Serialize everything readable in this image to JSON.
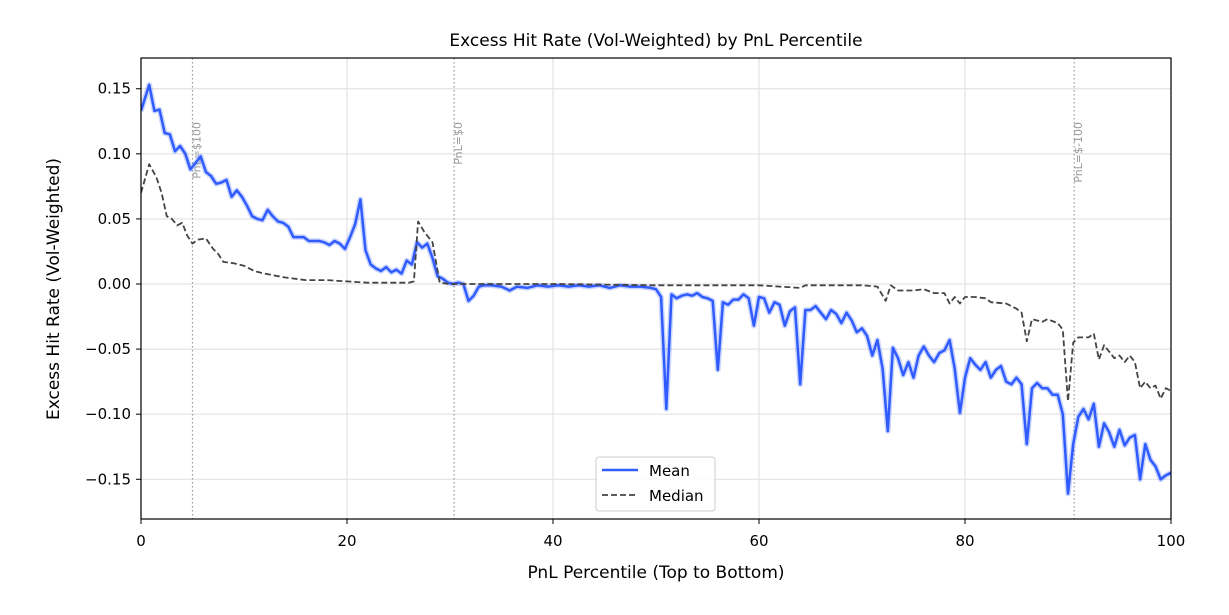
{
  "chart_data": {
    "type": "line",
    "title": "Excess Hit Rate (Vol-Weighted) by PnL Percentile",
    "xlabel": "PnL Percentile (Top to Bottom)",
    "ylabel": "Excess Hit Rate (Vol-Weighted)",
    "xlim": [
      0,
      100
    ],
    "ylim": [
      -0.1805,
      0.1736
    ],
    "xticks": [
      0,
      20,
      40,
      60,
      80,
      100
    ],
    "xtick_labels": [
      "0",
      "20",
      "40",
      "60",
      "80",
      "100"
    ],
    "yticks": [
      0.15,
      0.1,
      0.05,
      0.0,
      -0.05,
      -0.1,
      -0.15
    ],
    "ytick_labels": [
      "0.15",
      "0.10",
      "0.05",
      "0.00",
      "−0.05",
      "−0.10",
      "−0.15"
    ],
    "grid": true,
    "legend_placement": "bottom-center",
    "reference_lines": [
      {
        "x": 5.0,
        "label": "PnL=$100"
      },
      {
        "x": 30.4,
        "label": "PnL=$0"
      },
      {
        "x": 90.6,
        "label": "PnL=$-100"
      }
    ],
    "series": [
      {
        "name": "Mean",
        "color": "#2f5bff",
        "style": "solid",
        "x": [
          0,
          0.8,
          1.3,
          1.8,
          2.3,
          2.8,
          3.3,
          3.8,
          4.3,
          4.8,
          5.3,
          5.8,
          6.3,
          6.8,
          7.3,
          7.8,
          8.3,
          8.8,
          9.3,
          9.8,
          10.3,
          10.8,
          11.3,
          11.8,
          12.3,
          12.8,
          13.3,
          13.8,
          14.3,
          14.8,
          15.3,
          15.8,
          16.3,
          16.8,
          17.3,
          17.8,
          18.3,
          18.8,
          19.3,
          19.8,
          20.3,
          20.8,
          21.3,
          21.8,
          22.3,
          22.8,
          23.3,
          23.8,
          24.3,
          24.8,
          25.3,
          25.8,
          26.3,
          26.8,
          27.3,
          27.8,
          28.3,
          28.8,
          29.3,
          29.8,
          30.3,
          30.8,
          31.3,
          31.8,
          32.3,
          32.8,
          33.3,
          34,
          35,
          35.8,
          36.5,
          37.5,
          38.5,
          39.5,
          40.5,
          41.5,
          42.5,
          43.5,
          44.5,
          45.5,
          46.5,
          47.5,
          48.5,
          49.5,
          50,
          50.5,
          51,
          51.5,
          52,
          52.5,
          53,
          53.5,
          54,
          54.5,
          55,
          55.5,
          56,
          56.5,
          57,
          57.5,
          58,
          58.5,
          59,
          59.5,
          60,
          60.5,
          61,
          61.5,
          62,
          62.5,
          63,
          63.5,
          64,
          64.5,
          65,
          65.5,
          66,
          66.5,
          67,
          67.5,
          68,
          68.5,
          69,
          69.5,
          70,
          70.5,
          71,
          71.5,
          72,
          72.5,
          73,
          73.5,
          74,
          74.5,
          75,
          75.5,
          76,
          76.5,
          77,
          77.5,
          78,
          78.5,
          79,
          79.5,
          80,
          80.5,
          81,
          81.5,
          82,
          82.5,
          83,
          83.5,
          84,
          84.5,
          85,
          85.5,
          86,
          86.5,
          87,
          87.5,
          88,
          88.5,
          89,
          89.5,
          90,
          90.5,
          91,
          91.5,
          92,
          92.5,
          93,
          93.5,
          94,
          94.5,
          95,
          95.5,
          96,
          96.5,
          97,
          97.5,
          98,
          98.5,
          99,
          99.5,
          100
        ],
        "y": [
          0.133,
          0.153,
          0.133,
          0.134,
          0.116,
          0.115,
          0.102,
          0.106,
          0.1,
          0.088,
          0.093,
          0.098,
          0.086,
          0.083,
          0.077,
          0.078,
          0.08,
          0.067,
          0.072,
          0.067,
          0.06,
          0.052,
          0.05,
          0.049,
          0.057,
          0.052,
          0.048,
          0.047,
          0.044,
          0.036,
          0.036,
          0.036,
          0.033,
          0.033,
          0.033,
          0.032,
          0.03,
          0.033,
          0.031,
          0.027,
          0.036,
          0.046,
          0.065,
          0.026,
          0.015,
          0.012,
          0.01,
          0.013,
          0.009,
          0.011,
          0.008,
          0.018,
          0.015,
          0.032,
          0.028,
          0.031,
          0.02,
          0.006,
          0.004,
          0.001,
          0.0,
          0.001,
          0.0,
          -0.013,
          -0.009,
          -0.002,
          -0.001,
          -0.001,
          -0.002,
          -0.005,
          -0.002,
          -0.003,
          -0.001,
          -0.002,
          -0.001,
          -0.002,
          -0.001,
          -0.002,
          -0.001,
          -0.003,
          -0.001,
          -0.002,
          -0.002,
          -0.003,
          -0.004,
          -0.01,
          -0.096,
          -0.008,
          -0.011,
          -0.009,
          -0.008,
          -0.009,
          -0.007,
          -0.01,
          -0.011,
          -0.013,
          -0.066,
          -0.014,
          -0.016,
          -0.012,
          -0.012,
          -0.008,
          -0.011,
          -0.032,
          -0.01,
          -0.011,
          -0.022,
          -0.014,
          -0.016,
          -0.032,
          -0.021,
          -0.018,
          -0.077,
          -0.02,
          -0.02,
          -0.017,
          -0.022,
          -0.027,
          -0.02,
          -0.023,
          -0.03,
          -0.022,
          -0.028,
          -0.037,
          -0.034,
          -0.04,
          -0.055,
          -0.043,
          -0.065,
          -0.113,
          -0.049,
          -0.057,
          -0.07,
          -0.06,
          -0.072,
          -0.055,
          -0.048,
          -0.055,
          -0.06,
          -0.053,
          -0.051,
          -0.043,
          -0.065,
          -0.099,
          -0.072,
          -0.057,
          -0.062,
          -0.066,
          -0.06,
          -0.072,
          -0.066,
          -0.063,
          -0.075,
          -0.077,
          -0.072,
          -0.077,
          -0.123,
          -0.08,
          -0.076,
          -0.08,
          -0.08,
          -0.085,
          -0.085,
          -0.1,
          -0.161,
          -0.123,
          -0.102,
          -0.096,
          -0.104,
          -0.092,
          -0.125,
          -0.107,
          -0.114,
          -0.125,
          -0.112,
          -0.124,
          -0.118,
          -0.116,
          -0.15,
          -0.123,
          -0.135,
          -0.14,
          -0.15,
          -0.147,
          -0.145
        ]
      },
      {
        "name": "Median",
        "color": "#444444",
        "style": "dashed",
        "x": [
          0,
          0.8,
          1.5,
          2,
          2.5,
          3,
          3.5,
          4,
          4.5,
          5,
          5.5,
          6.3,
          7,
          7.5,
          8,
          9,
          10,
          11,
          12,
          14,
          16,
          18,
          20,
          22,
          24,
          26,
          26.5,
          26.9,
          27.5,
          28.3,
          29,
          30,
          40,
          50,
          55,
          60,
          64,
          64.5,
          70,
          71.5,
          72.3,
          72.8,
          73.5,
          75,
          76,
          77,
          78,
          78.5,
          79,
          79.5,
          80,
          81,
          82,
          82.5,
          84,
          85,
          85.5,
          86,
          86.5,
          87,
          87.5,
          88,
          89,
          89.5,
          90,
          90.5,
          91,
          92,
          92.5,
          93,
          93.5,
          94,
          94.5,
          95,
          95.5,
          96,
          96.5,
          97,
          97.5,
          98,
          98.5,
          99,
          99.5,
          100
        ],
        "y": [
          0.07,
          0.092,
          0.082,
          0.07,
          0.052,
          0.05,
          0.045,
          0.047,
          0.037,
          0.031,
          0.034,
          0.035,
          0.027,
          0.023,
          0.017,
          0.016,
          0.014,
          0.01,
          0.008,
          0.005,
          0.003,
          0.003,
          0.002,
          0.001,
          0.001,
          0.001,
          0.002,
          0.048,
          0.04,
          0.032,
          0.001,
          0.0,
          0.0,
          -0.001,
          -0.001,
          -0.001,
          -0.003,
          -0.001,
          -0.001,
          -0.002,
          -0.013,
          -0.001,
          -0.005,
          -0.005,
          -0.004,
          -0.007,
          -0.007,
          -0.015,
          -0.01,
          -0.015,
          -0.01,
          -0.01,
          -0.011,
          -0.014,
          -0.015,
          -0.019,
          -0.022,
          -0.044,
          -0.027,
          -0.028,
          -0.029,
          -0.027,
          -0.03,
          -0.035,
          -0.09,
          -0.045,
          -0.041,
          -0.041,
          -0.038,
          -0.058,
          -0.047,
          -0.052,
          -0.057,
          -0.055,
          -0.06,
          -0.055,
          -0.06,
          -0.08,
          -0.075,
          -0.08,
          -0.078,
          -0.088,
          -0.08,
          -0.082
        ]
      }
    ]
  }
}
